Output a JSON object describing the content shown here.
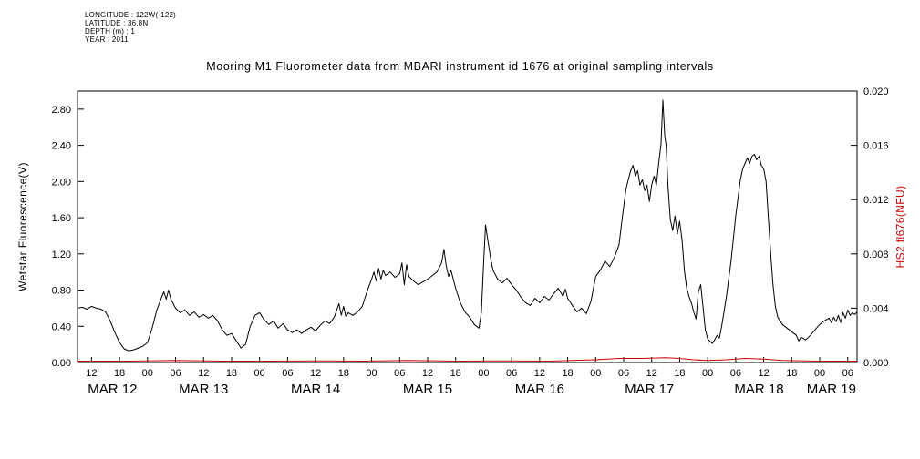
{
  "meta": {
    "longitude": "LONGITUDE : 122W(-122)",
    "latitude": "LATITUDE : 36.8N",
    "depth": "DEPTH (m) : 1",
    "year": "YEAR : 2011"
  },
  "title": "Mooring M1 Fluorometer data from MBARI instrument id 1676 at original sampling intervals",
  "colors": {
    "primary": "#000000",
    "accent_red": "#cc0000"
  },
  "chart_data": {
    "type": "line",
    "title": "Mooring M1 Fluorometer data from MBARI instrument id 1676 at original sampling intervals",
    "ylabel_left": "Wetstar Fluorescence(V)",
    "ylabel_right": "HS2 fl676(NFU)",
    "y_left_range": [
      0,
      3.0
    ],
    "y_right_range": [
      0,
      0.02
    ],
    "x_range_hours": [
      9,
      176
    ],
    "grid": false,
    "legend": "none",
    "y_left_ticks": [
      {
        "v": 0.0,
        "label": "0.00"
      },
      {
        "v": 0.4,
        "label": "0.40"
      },
      {
        "v": 0.8,
        "label": "0.80"
      },
      {
        "v": 1.2,
        "label": "1.20"
      },
      {
        "v": 1.6,
        "label": "1.60"
      },
      {
        "v": 2.0,
        "label": "2.00"
      },
      {
        "v": 2.4,
        "label": "2.40"
      },
      {
        "v": 2.8,
        "label": "2.80"
      }
    ],
    "y_right_ticks": [
      {
        "v": 0.0,
        "label": "0.000"
      },
      {
        "v": 0.004,
        "label": "0.004"
      },
      {
        "v": 0.008,
        "label": "0.008"
      },
      {
        "v": 0.012,
        "label": "0.012"
      },
      {
        "v": 0.016,
        "label": "0.016"
      },
      {
        "v": 0.02,
        "label": "0.020"
      }
    ],
    "hour_ticks": [
      {
        "t": 12,
        "label": "12"
      },
      {
        "t": 18,
        "label": "18"
      },
      {
        "t": 24,
        "label": "00"
      },
      {
        "t": 30,
        "label": "06"
      },
      {
        "t": 36,
        "label": "12"
      },
      {
        "t": 42,
        "label": "18"
      },
      {
        "t": 48,
        "label": "00"
      },
      {
        "t": 54,
        "label": "06"
      },
      {
        "t": 60,
        "label": "12"
      },
      {
        "t": 66,
        "label": "18"
      },
      {
        "t": 72,
        "label": "00"
      },
      {
        "t": 78,
        "label": "06"
      },
      {
        "t": 84,
        "label": "12"
      },
      {
        "t": 90,
        "label": "18"
      },
      {
        "t": 96,
        "label": "00"
      },
      {
        "t": 102,
        "label": "06"
      },
      {
        "t": 108,
        "label": "12"
      },
      {
        "t": 114,
        "label": "18"
      },
      {
        "t": 120,
        "label": "00"
      },
      {
        "t": 126,
        "label": "06"
      },
      {
        "t": 132,
        "label": "12"
      },
      {
        "t": 138,
        "label": "18"
      },
      {
        "t": 144,
        "label": "00"
      },
      {
        "t": 150,
        "label": "06"
      },
      {
        "t": 156,
        "label": "12"
      },
      {
        "t": 162,
        "label": "18"
      },
      {
        "t": 168,
        "label": "00"
      },
      {
        "t": 174,
        "label": "06"
      }
    ],
    "day_labels": [
      {
        "label": "MAR 12",
        "t": 16.5
      },
      {
        "label": "MAR 13",
        "t": 36
      },
      {
        "label": "MAR 14",
        "t": 60
      },
      {
        "label": "MAR 15",
        "t": 84
      },
      {
        "label": "MAR 16",
        "t": 108
      },
      {
        "label": "MAR 17",
        "t": 131.5
      },
      {
        "label": "MAR 18",
        "t": 155
      },
      {
        "label": "MAR 19",
        "t": 170.5
      }
    ],
    "series": [
      {
        "name": "Wetstar Fluorescence(V)",
        "slug": "wetstar-fluorescence-series",
        "axis": "left",
        "color": "#000000",
        "points": [
          [
            9,
            0.6
          ],
          [
            10,
            0.61
          ],
          [
            11,
            0.59
          ],
          [
            12,
            0.62
          ],
          [
            13,
            0.6
          ],
          [
            14,
            0.59
          ],
          [
            15,
            0.56
          ],
          [
            16,
            0.46
          ],
          [
            17,
            0.33
          ],
          [
            18,
            0.22
          ],
          [
            19,
            0.15
          ],
          [
            20,
            0.13
          ],
          [
            21,
            0.14
          ],
          [
            22,
            0.16
          ],
          [
            23,
            0.18
          ],
          [
            24,
            0.22
          ],
          [
            25,
            0.38
          ],
          [
            26,
            0.58
          ],
          [
            27,
            0.72
          ],
          [
            27.5,
            0.78
          ],
          [
            28,
            0.7
          ],
          [
            28.5,
            0.8
          ],
          [
            29,
            0.7
          ],
          [
            30,
            0.6
          ],
          [
            31,
            0.55
          ],
          [
            32,
            0.58
          ],
          [
            33,
            0.52
          ],
          [
            34,
            0.56
          ],
          [
            35,
            0.5
          ],
          [
            36,
            0.53
          ],
          [
            37,
            0.49
          ],
          [
            38,
            0.52
          ],
          [
            39,
            0.46
          ],
          [
            40,
            0.36
          ],
          [
            41,
            0.3
          ],
          [
            42,
            0.32
          ],
          [
            43,
            0.24
          ],
          [
            44,
            0.16
          ],
          [
            45,
            0.2
          ],
          [
            46,
            0.4
          ],
          [
            47,
            0.52
          ],
          [
            48,
            0.55
          ],
          [
            49,
            0.47
          ],
          [
            50,
            0.42
          ],
          [
            51,
            0.46
          ],
          [
            52,
            0.38
          ],
          [
            53,
            0.43
          ],
          [
            54,
            0.36
          ],
          [
            55,
            0.33
          ],
          [
            56,
            0.36
          ],
          [
            57,
            0.32
          ],
          [
            58,
            0.36
          ],
          [
            59,
            0.39
          ],
          [
            60,
            0.35
          ],
          [
            61,
            0.41
          ],
          [
            62,
            0.46
          ],
          [
            63,
            0.43
          ],
          [
            64,
            0.5
          ],
          [
            65,
            0.65
          ],
          [
            65.5,
            0.52
          ],
          [
            66,
            0.62
          ],
          [
            66.5,
            0.5
          ],
          [
            67,
            0.55
          ],
          [
            68,
            0.52
          ],
          [
            69,
            0.56
          ],
          [
            70,
            0.62
          ],
          [
            71,
            0.78
          ],
          [
            72,
            0.92
          ],
          [
            72.5,
            1.0
          ],
          [
            73,
            0.9
          ],
          [
            73.5,
            1.04
          ],
          [
            74,
            0.92
          ],
          [
            74.5,
            1.02
          ],
          [
            75,
            0.96
          ],
          [
            76,
            1.0
          ],
          [
            77,
            0.94
          ],
          [
            78,
            0.98
          ],
          [
            78.5,
            1.1
          ],
          [
            79,
            0.86
          ],
          [
            79.5,
            1.08
          ],
          [
            80,
            0.95
          ],
          [
            81,
            0.9
          ],
          [
            82,
            0.86
          ],
          [
            83,
            0.89
          ],
          [
            84,
            0.92
          ],
          [
            85,
            0.96
          ],
          [
            86,
            1.0
          ],
          [
            87,
            1.1
          ],
          [
            87.5,
            1.25
          ],
          [
            88,
            1.06
          ],
          [
            88.5,
            0.95
          ],
          [
            89,
            1.02
          ],
          [
            90,
            0.82
          ],
          [
            91,
            0.66
          ],
          [
            92,
            0.56
          ],
          [
            93,
            0.5
          ],
          [
            94,
            0.42
          ],
          [
            95,
            0.38
          ],
          [
            95.5,
            0.55
          ],
          [
            96,
            1.1
          ],
          [
            96.4,
            1.52
          ],
          [
            97,
            1.32
          ],
          [
            97.5,
            1.15
          ],
          [
            98,
            1.02
          ],
          [
            99,
            0.92
          ],
          [
            100,
            0.88
          ],
          [
            101,
            0.93
          ],
          [
            102,
            0.86
          ],
          [
            103,
            0.8
          ],
          [
            104,
            0.72
          ],
          [
            105,
            0.66
          ],
          [
            106,
            0.63
          ],
          [
            107,
            0.71
          ],
          [
            108,
            0.66
          ],
          [
            109,
            0.73
          ],
          [
            110,
            0.69
          ],
          [
            111,
            0.76
          ],
          [
            112,
            0.82
          ],
          [
            113,
            0.73
          ],
          [
            113.5,
            0.81
          ],
          [
            114,
            0.71
          ],
          [
            115,
            0.63
          ],
          [
            116,
            0.56
          ],
          [
            117,
            0.6
          ],
          [
            118,
            0.54
          ],
          [
            119,
            0.68
          ],
          [
            120,
            0.95
          ],
          [
            121,
            1.02
          ],
          [
            122,
            1.12
          ],
          [
            123,
            1.06
          ],
          [
            124,
            1.16
          ],
          [
            125,
            1.3
          ],
          [
            125.5,
            1.52
          ],
          [
            126,
            1.72
          ],
          [
            126.5,
            1.92
          ],
          [
            127,
            2.02
          ],
          [
            127.5,
            2.12
          ],
          [
            128,
            2.18
          ],
          [
            128.5,
            2.06
          ],
          [
            129,
            2.12
          ],
          [
            129.5,
            1.96
          ],
          [
            130,
            2.02
          ],
          [
            130.5,
            1.9
          ],
          [
            131,
            1.96
          ],
          [
            131.5,
            1.78
          ],
          [
            132,
            1.96
          ],
          [
            132.5,
            2.06
          ],
          [
            133,
            1.96
          ],
          [
            133.5,
            2.2
          ],
          [
            134,
            2.42
          ],
          [
            134.4,
            2.9
          ],
          [
            134.8,
            2.5
          ],
          [
            135.1,
            2.4
          ],
          [
            135.5,
            1.95
          ],
          [
            136,
            1.58
          ],
          [
            136.5,
            1.46
          ],
          [
            137,
            1.62
          ],
          [
            137.5,
            1.42
          ],
          [
            138,
            1.56
          ],
          [
            138.5,
            1.36
          ],
          [
            139,
            1.02
          ],
          [
            139.5,
            0.82
          ],
          [
            140,
            0.73
          ],
          [
            140.5,
            0.66
          ],
          [
            141,
            0.56
          ],
          [
            141.5,
            0.48
          ],
          [
            142,
            0.78
          ],
          [
            142.5,
            0.86
          ],
          [
            143,
            0.62
          ],
          [
            143.5,
            0.36
          ],
          [
            144,
            0.26
          ],
          [
            145,
            0.21
          ],
          [
            145.5,
            0.25
          ],
          [
            146,
            0.3
          ],
          [
            146.5,
            0.27
          ],
          [
            147,
            0.4
          ],
          [
            148,
            0.72
          ],
          [
            149,
            1.12
          ],
          [
            150,
            1.62
          ],
          [
            151,
            2.02
          ],
          [
            151.5,
            2.14
          ],
          [
            152,
            2.2
          ],
          [
            152.5,
            2.26
          ],
          [
            153,
            2.2
          ],
          [
            153.5,
            2.28
          ],
          [
            154,
            2.3
          ],
          [
            154.5,
            2.24
          ],
          [
            155,
            2.28
          ],
          [
            155.5,
            2.18
          ],
          [
            156,
            2.14
          ],
          [
            156.5,
            2.0
          ],
          [
            157,
            1.6
          ],
          [
            157.5,
            1.2
          ],
          [
            158,
            0.86
          ],
          [
            158.5,
            0.62
          ],
          [
            159,
            0.5
          ],
          [
            159.5,
            0.46
          ],
          [
            160,
            0.42
          ],
          [
            161,
            0.38
          ],
          [
            162,
            0.34
          ],
          [
            163,
            0.3
          ],
          [
            163.5,
            0.24
          ],
          [
            164,
            0.28
          ],
          [
            165,
            0.25
          ],
          [
            166,
            0.3
          ],
          [
            167,
            0.36
          ],
          [
            168,
            0.42
          ],
          [
            169,
            0.46
          ],
          [
            170,
            0.49
          ],
          [
            170.5,
            0.44
          ],
          [
            171,
            0.5
          ],
          [
            171.5,
            0.45
          ],
          [
            172,
            0.52
          ],
          [
            172.5,
            0.44
          ],
          [
            173,
            0.55
          ],
          [
            173.5,
            0.49
          ],
          [
            174,
            0.58
          ],
          [
            174.5,
            0.52
          ],
          [
            175,
            0.55
          ],
          [
            175.5,
            0.53
          ],
          [
            176,
            0.56
          ]
        ]
      },
      {
        "name": "HS2 fl676(NFU)",
        "slug": "hs2-fl676-series",
        "axis": "right",
        "color": "#cc0000",
        "points": [
          [
            9,
            0.0001
          ],
          [
            20,
            0.0001
          ],
          [
            30,
            0.00015
          ],
          [
            40,
            0.0001
          ],
          [
            50,
            0.0001
          ],
          [
            60,
            0.00012
          ],
          [
            70,
            0.0001
          ],
          [
            80,
            0.00015
          ],
          [
            90,
            0.0001
          ],
          [
            100,
            0.00012
          ],
          [
            110,
            0.0001
          ],
          [
            120,
            0.0002
          ],
          [
            125,
            0.0003
          ],
          [
            130,
            0.0003
          ],
          [
            135,
            0.00035
          ],
          [
            138,
            0.0003
          ],
          [
            141,
            0.0002
          ],
          [
            144,
            0.00015
          ],
          [
            148,
            0.0002
          ],
          [
            152,
            0.0003
          ],
          [
            156,
            0.00025
          ],
          [
            160,
            0.00015
          ],
          [
            168,
            0.0001
          ],
          [
            176,
            0.0001
          ]
        ]
      }
    ]
  }
}
